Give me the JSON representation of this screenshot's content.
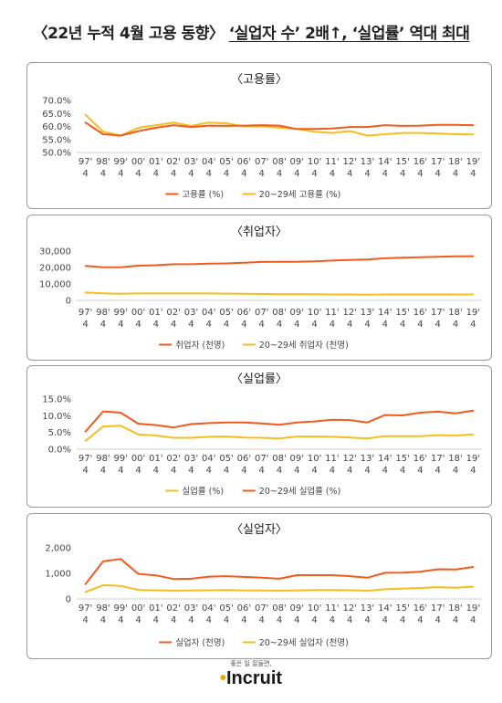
{
  "header": {
    "title_part1": "〈22년 누적 4월 고용 동향〉",
    "title_part2": "‘실업자 수’ 2배↑, ‘실업률’ 역대 최대"
  },
  "colors": {
    "total": "#f15a1e",
    "youth": "#f5bd1f"
  },
  "footer": {
    "tagline": "좋은 일 잘들면,",
    "logo": "Incruit"
  },
  "chart_data": [
    {
      "type": "line",
      "title": "〈고용률〉",
      "categories": [
        "97'\n4",
        "98'\n4",
        "99'\n4",
        "00'\n4",
        "01'\n4",
        "02'\n4",
        "03'\n4",
        "04'\n4",
        "05'\n4",
        "06'\n4",
        "07'\n4",
        "08'\n4",
        "09'\n4",
        "10'\n4",
        "11'\n4",
        "12'\n4",
        "13'\n4",
        "14'\n4",
        "15'\n4",
        "16'\n4",
        "17'\n4",
        "18'\n4",
        "19'\n4"
      ],
      "ylim": [
        50,
        70
      ],
      "yticks": [
        50,
        55,
        60,
        65,
        70
      ],
      "yticklabels": [
        "50.0%",
        "55.0%",
        "60.0%",
        "65.0%",
        "70.0%"
      ],
      "legend_order": [
        "total",
        "youth"
      ],
      "series": [
        {
          "key": "total",
          "name": "고용률 (%)",
          "values": [
            61.5,
            57,
            56.5,
            58.2,
            59.5,
            60.5,
            59.8,
            60.3,
            60.2,
            60.3,
            60.5,
            60.3,
            59,
            59,
            59.2,
            59.8,
            59.8,
            60.5,
            60.2,
            60.3,
            60.6,
            60.6,
            60.5
          ]
        },
        {
          "key": "youth",
          "name": "20~29세 고용률 (%)",
          "values": [
            64.5,
            58,
            56.5,
            59.5,
            60.5,
            61.5,
            60.2,
            61.5,
            61.2,
            60,
            60,
            59.5,
            59,
            58,
            57.5,
            58.2,
            56.5,
            57,
            57.5,
            57.5,
            57.3,
            57,
            56.9
          ]
        }
      ]
    },
    {
      "type": "line",
      "title": "〈취업자〉",
      "categories": [
        "97'\n4",
        "98'\n4",
        "99'\n4",
        "00'\n4",
        "01'\n4",
        "02'\n4",
        "03'\n4",
        "04'\n4",
        "05'\n4",
        "06'\n4",
        "07'\n4",
        "08'\n4",
        "09'\n4",
        "10'\n4",
        "11'\n4",
        "12'\n4",
        "13'\n4",
        "14'\n4",
        "15'\n4",
        "16'\n4",
        "17'\n4",
        "18'\n4",
        "19'\n4"
      ],
      "ylim": [
        0,
        30000
      ],
      "yticks": [
        0,
        10000,
        20000,
        30000
      ],
      "yticklabels": [
        "0",
        "10,000",
        "20,000",
        "30,000"
      ],
      "legend_order": [
        "total",
        "youth"
      ],
      "series": [
        {
          "key": "total",
          "name": "취업자 (천명)",
          "values": [
            21000,
            20100,
            20100,
            21100,
            21400,
            22000,
            22000,
            22400,
            22500,
            22900,
            23400,
            23500,
            23500,
            23700,
            24200,
            24600,
            24900,
            25600,
            26000,
            26200,
            26500,
            26800,
            26900
          ]
        },
        {
          "key": "youth",
          "name": "20~29세 취업자 (천명)",
          "values": [
            4800,
            4300,
            4000,
            4200,
            4200,
            4200,
            4200,
            4200,
            4100,
            4000,
            3900,
            3800,
            3700,
            3700,
            3600,
            3600,
            3500,
            3600,
            3600,
            3600,
            3600,
            3600,
            3600
          ]
        }
      ]
    },
    {
      "type": "line",
      "title": "〈실업률〉",
      "categories": [
        "97'\n4",
        "98'\n4",
        "99'\n4",
        "00'\n4",
        "01'\n4",
        "02'\n4",
        "03'\n4",
        "04'\n4",
        "05'\n4",
        "06'\n4",
        "07'\n4",
        "08'\n4",
        "09'\n4",
        "10'\n4",
        "11'\n4",
        "12'\n4",
        "13'\n4",
        "14'\n4",
        "15'\n4",
        "16'\n4",
        "17'\n4",
        "18'\n4",
        "19'\n4"
      ],
      "ylim": [
        0,
        15
      ],
      "yticks": [
        0,
        5,
        10,
        15
      ],
      "yticklabels": [
        "0.0%",
        "5.0%",
        "10.0%",
        "15.0%"
      ],
      "legend_order": [
        "youth",
        "total"
      ],
      "series": [
        {
          "key": "total",
          "name": "20~29세 실업률 (%)",
          "values": [
            5.3,
            11.3,
            10.9,
            7.6,
            7.2,
            6.5,
            7.5,
            7.8,
            8.0,
            8.0,
            7.7,
            7.3,
            8.0,
            8.3,
            8.8,
            8.7,
            8.0,
            10.2,
            10.1,
            10.9,
            11.2,
            10.7,
            11.5
          ]
        },
        {
          "key": "youth",
          "name": "실업률 (%)",
          "values": [
            2.5,
            6.8,
            7.0,
            4.4,
            4.1,
            3.4,
            3.4,
            3.7,
            3.8,
            3.5,
            3.4,
            3.2,
            3.8,
            3.8,
            3.7,
            3.5,
            3.2,
            3.9,
            3.9,
            3.9,
            4.2,
            4.1,
            4.4
          ]
        }
      ]
    },
    {
      "type": "line",
      "title": "〈실업자〉",
      "categories": [
        "97'\n4",
        "98'\n4",
        "99'\n4",
        "00'\n4",
        "01'\n4",
        "02'\n4",
        "03'\n4",
        "04'\n4",
        "05'\n4",
        "06'\n4",
        "07'\n4",
        "08'\n4",
        "09'\n4",
        "10'\n4",
        "11'\n4",
        "12'\n4",
        "13'\n4",
        "14'\n4",
        "15'\n4",
        "16'\n4",
        "17'\n4",
        "18'\n4",
        "19'\n4"
      ],
      "ylim": [
        0,
        2000
      ],
      "yticks": [
        0,
        1000,
        2000
      ],
      "yticklabels": [
        "0",
        "1,000",
        "2,000"
      ],
      "legend_order": [
        "total",
        "youth"
      ],
      "series": [
        {
          "key": "total",
          "name": "실업자 (천명)",
          "values": [
            580,
            1470,
            1560,
            980,
            920,
            780,
            790,
            870,
            890,
            860,
            830,
            790,
            930,
            930,
            930,
            890,
            830,
            1020,
            1030,
            1060,
            1160,
            1150,
            1250
          ]
        },
        {
          "key": "youth",
          "name": "20~29세 실업자 (천명)",
          "values": [
            270,
            540,
            510,
            350,
            340,
            320,
            330,
            340,
            350,
            330,
            330,
            320,
            330,
            350,
            350,
            340,
            320,
            380,
            400,
            430,
            460,
            440,
            480
          ]
        }
      ]
    }
  ]
}
